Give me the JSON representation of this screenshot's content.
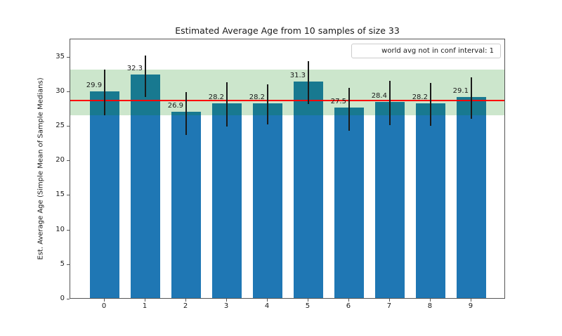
{
  "chart_data": {
    "type": "bar",
    "title": "Estimated Average Age from 10 samples of size 33",
    "xlabel": "",
    "ylabel": "Est. Average Age (Simple Mean of Sample Medians)",
    "categories": [
      "0",
      "1",
      "2",
      "3",
      "4",
      "5",
      "6",
      "7",
      "8",
      "9"
    ],
    "values": [
      29.9,
      32.3,
      26.9,
      28.2,
      28.2,
      31.3,
      27.5,
      28.4,
      28.2,
      29.1
    ],
    "bar_labels": [
      "29.9",
      "32.3",
      "26.9",
      "28.2",
      "28.2",
      "31.3",
      "27.5",
      "28.4",
      "28.2",
      "29.1"
    ],
    "errors": [
      3.3,
      3.0,
      3.1,
      3.2,
      2.9,
      3.1,
      3.1,
      3.2,
      3.1,
      3.0
    ],
    "yticks": [
      0,
      5,
      10,
      15,
      20,
      25,
      30,
      35
    ],
    "ylim": [
      0,
      37.6
    ],
    "grid": "off",
    "reference_line": {
      "value": 28.8,
      "color": "#ff0000"
    },
    "band": {
      "from": 26.65,
      "to": 33.25,
      "color": "#008000",
      "alpha": 0.2
    },
    "legend": {
      "text": "world avg not in conf interval: 1",
      "position": "upper right"
    },
    "colors": {
      "bar": "#1f77b4",
      "error_bar": "#1a1a1a",
      "text": "#1a1a1a",
      "spine": "#555555"
    }
  }
}
